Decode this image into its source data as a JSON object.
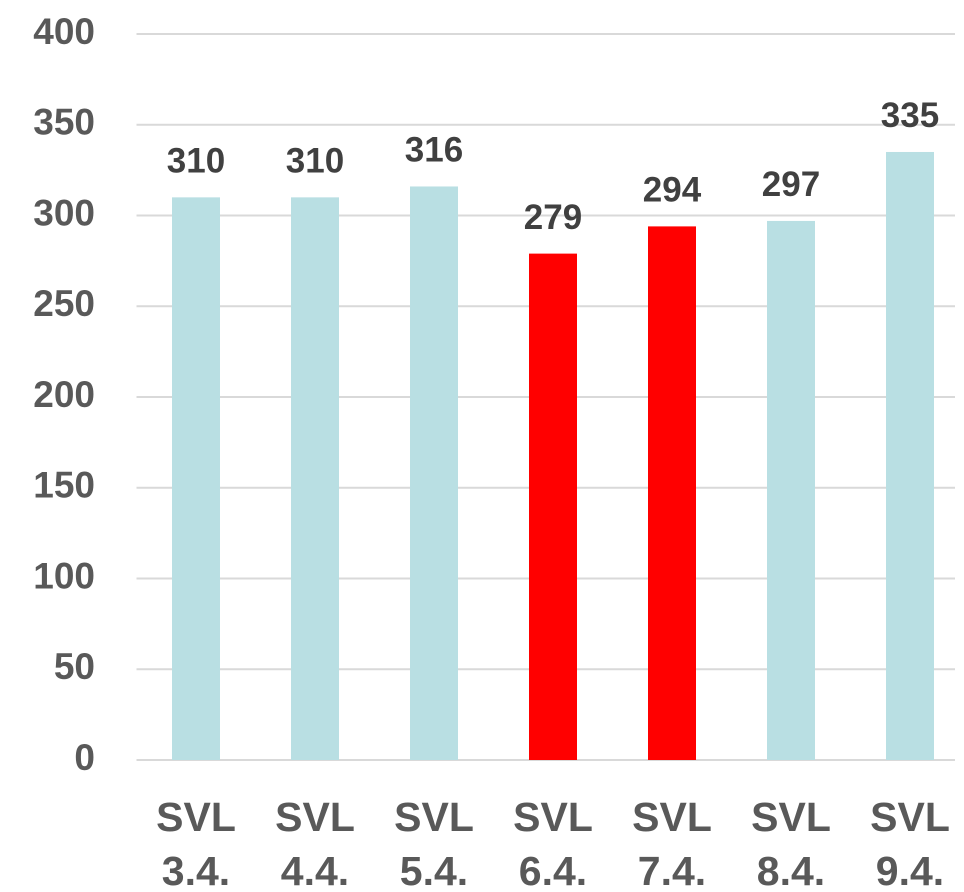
{
  "chart_data": {
    "type": "bar",
    "categories": [
      "SVL 3.4.",
      "SVL 4.4.",
      "SVL 5.4.",
      "SVL 6.4.",
      "SVL 7.4.",
      "SVL 8.4.",
      "SVL 9.4."
    ],
    "values": [
      310,
      310,
      316,
      279,
      294,
      297,
      335
    ],
    "colors": [
      "#b9dfe3",
      "#b9dfe3",
      "#b9dfe3",
      "#ff0000",
      "#ff0000",
      "#b9dfe3",
      "#b9dfe3"
    ],
    "ylim": [
      0,
      400
    ],
    "yticks": [
      0,
      50,
      100,
      150,
      200,
      250,
      300,
      350,
      400
    ],
    "grid": true
  }
}
